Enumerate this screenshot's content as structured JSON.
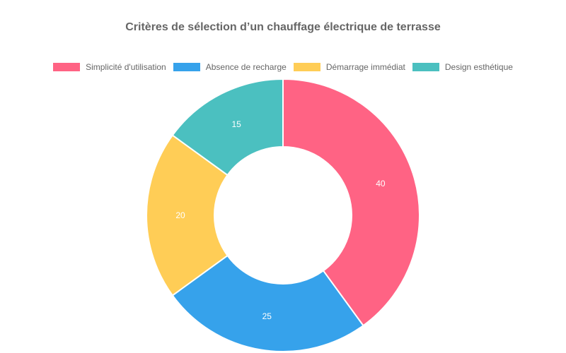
{
  "chart_data": {
    "type": "doughnut",
    "title": "Critères de sélection d’un chauffage électrique de terrasse",
    "categories": [
      "Simplicité d'utilisation",
      "Absence de recharge",
      "Démarrage immédiat",
      "Design esthétique"
    ],
    "values": [
      40,
      25,
      20,
      15
    ],
    "colors": [
      "#ff6384",
      "#36a2eb",
      "#ffcd56",
      "#4bc0c0"
    ],
    "legend_position": "top",
    "data_labels": true,
    "center": [
      400,
      305
    ],
    "outer_radius": 193,
    "inner_radius": 97
  },
  "legend": [
    {
      "label": "Simplicité d'utilisation",
      "color": "#ff6384"
    },
    {
      "label": "Absence de recharge",
      "color": "#36a2eb"
    },
    {
      "label": "Démarrage immédiat",
      "color": "#ffcd56"
    },
    {
      "label": "Design esthétique",
      "color": "#4bc0c0"
    }
  ]
}
